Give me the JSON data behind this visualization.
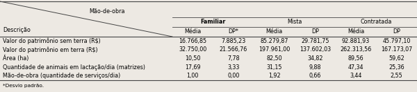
{
  "header_top": "Mão-de-obra",
  "col_groups": [
    "Familiar",
    "Mista",
    "Contratada"
  ],
  "col_subheaders": [
    "Média",
    "DP*",
    "Média",
    "DP",
    "Média",
    "DP"
  ],
  "row_label_header": "Descrição",
  "rows": [
    {
      "label": "Valor do patrimônio sem terra (R$)",
      "values": [
        "16.766,85",
        "7.885,23",
        "85.279,87",
        "29.781,75",
        "92.881,93",
        "45.797,10"
      ]
    },
    {
      "label": "Valor do patrimônio em terra (R$)",
      "values": [
        "32.750,00",
        "21.566,76",
        "197.961,00",
        "137.602,03",
        "262.313,56",
        "167.173,07"
      ]
    },
    {
      "label": "Área (ha)",
      "values": [
        "10,50",
        "7,78",
        "82,50",
        "34,82",
        "89,56",
        "59,62"
      ]
    },
    {
      "label": "Quantidade de animais em lactação/dia (matrizes)",
      "values": [
        "17,69",
        "3,33",
        "31,15",
        "9,88",
        "47,34",
        "25,36"
      ]
    },
    {
      "label": "Mão-de-obra (quantidade de serviços/dia)",
      "values": [
        "1,00",
        "0,00",
        "1,92",
        "0,66",
        "3,44",
        "2,55"
      ]
    }
  ],
  "footnote": "*Desvio padrão.",
  "bg_color": "#ede9e3",
  "line_color": "#444444",
  "font_size": 5.8,
  "bold_group_idx": 0
}
